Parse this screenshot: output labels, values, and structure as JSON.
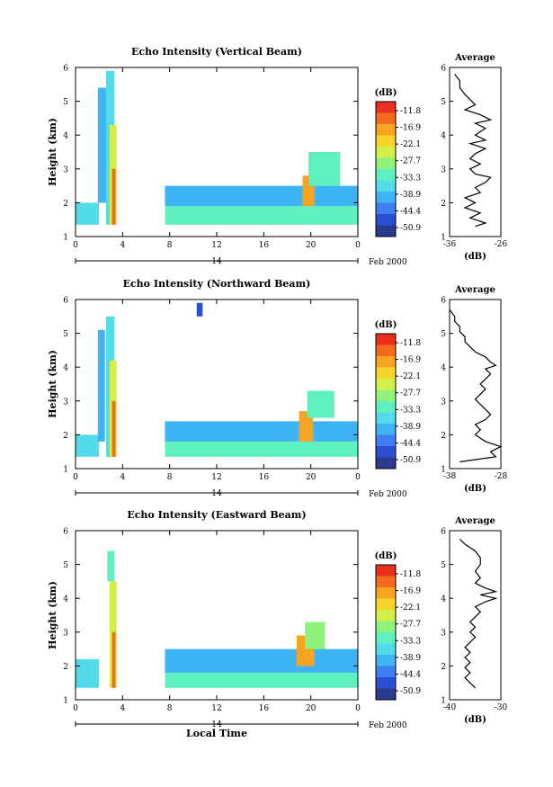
{
  "chart_data": [
    {
      "type": "heatmap",
      "title": "Echo Intensity (Vertical Beam)",
      "ylabel": "Height (km)",
      "xlabel": "",
      "ylim": [
        1,
        6
      ],
      "xlim": [
        0,
        24
      ],
      "yticks": [
        "1",
        "2",
        "3",
        "4",
        "5",
        "6"
      ],
      "xticks": [
        "0",
        "4",
        "8",
        "12",
        "16",
        "20",
        "0"
      ],
      "date_label": "14",
      "month_label": "Feb 2000",
      "colorbar": {
        "unit": "(dB)",
        "labels": [
          "-11.8",
          "-16.9",
          "-22.1",
          "-27.7",
          "-33.3",
          "-38.9",
          "-44.4",
          "-50.9"
        ],
        "colors": [
          "#2a3a8c",
          "#2b4fd4",
          "#3f7ef0",
          "#3fb4f5",
          "#52dcea",
          "#5ff0c0",
          "#8ff27a",
          "#d4f046",
          "#f6d52a",
          "#f9a420",
          "#f56b1d",
          "#e8301c"
        ]
      },
      "regions": [
        {
          "x0": 0.0,
          "x1": 2.0,
          "y0": 1.35,
          "y1": 2.0,
          "level": 4
        },
        {
          "x0": 1.9,
          "x1": 2.6,
          "y0": 2.0,
          "y1": 5.4,
          "level": 3
        },
        {
          "x0": 2.6,
          "x1": 3.3,
          "y0": 1.35,
          "y1": 5.9,
          "level": 4
        },
        {
          "x0": 2.9,
          "x1": 3.5,
          "y0": 1.35,
          "y1": 4.3,
          "level": 7
        },
        {
          "x0": 3.1,
          "x1": 3.4,
          "y0": 1.35,
          "y1": 3.0,
          "level": 10
        },
        {
          "x0": 7.6,
          "x1": 24.0,
          "y0": 1.35,
          "y1": 1.9,
          "level": 5
        },
        {
          "x0": 7.6,
          "x1": 24.0,
          "y0": 1.9,
          "y1": 2.5,
          "level": 3
        },
        {
          "x0": 19.3,
          "x1": 20.3,
          "y0": 1.9,
          "y1": 2.8,
          "level": 9
        },
        {
          "x0": 19.8,
          "x1": 22.5,
          "y0": 2.5,
          "y1": 3.5,
          "level": 5
        }
      ],
      "average": {
        "xlabel": "(dB)",
        "title": "Average",
        "xlim": [
          -36,
          -26
        ],
        "xticks": [
          "-36",
          "-26"
        ],
        "profile": [
          [
            1.3,
            -31
          ],
          [
            1.4,
            -29
          ],
          [
            1.55,
            -32
          ],
          [
            1.7,
            -30
          ],
          [
            1.85,
            -33
          ],
          [
            2.0,
            -31
          ],
          [
            2.15,
            -33
          ],
          [
            2.3,
            -30
          ],
          [
            2.45,
            -31
          ],
          [
            2.6,
            -29
          ],
          [
            2.75,
            -28
          ],
          [
            2.85,
            -31
          ],
          [
            3.0,
            -32
          ],
          [
            3.15,
            -30
          ],
          [
            3.3,
            -32
          ],
          [
            3.45,
            -31
          ],
          [
            3.6,
            -29
          ],
          [
            3.75,
            -32
          ],
          [
            3.85,
            -29
          ],
          [
            4.0,
            -31
          ],
          [
            4.1,
            -30
          ],
          [
            4.2,
            -29
          ],
          [
            4.35,
            -31
          ],
          [
            4.45,
            -28
          ],
          [
            4.6,
            -30
          ],
          [
            4.75,
            -33
          ],
          [
            4.9,
            -31
          ],
          [
            5.05,
            -32
          ],
          [
            5.2,
            -33
          ],
          [
            5.4,
            -34
          ],
          [
            5.6,
            -34
          ],
          [
            5.8,
            -35
          ]
        ]
      }
    },
    {
      "type": "heatmap",
      "title": "Echo Intensity (Northward Beam)",
      "ylabel": "Height (km)",
      "xlabel": "",
      "ylim": [
        1,
        6
      ],
      "xlim": [
        0,
        24
      ],
      "yticks": [
        "1",
        "2",
        "3",
        "4",
        "5",
        "6"
      ],
      "xticks": [
        "0",
        "4",
        "8",
        "12",
        "16",
        "20",
        "0"
      ],
      "date_label": "14",
      "month_label": "Feb 2000",
      "colorbar": {
        "unit": "(dB)",
        "labels": [
          "-11.8",
          "-16.9",
          "-22.1",
          "-27.7",
          "-33.3",
          "-38.9",
          "-44.4",
          "-50.9"
        ],
        "colors": [
          "#2a3a8c",
          "#2b4fd4",
          "#3f7ef0",
          "#3fb4f5",
          "#52dcea",
          "#5ff0c0",
          "#8ff27a",
          "#d4f046",
          "#f6d52a",
          "#f9a420",
          "#f56b1d",
          "#e8301c"
        ]
      },
      "regions": [
        {
          "x0": 0.0,
          "x1": 2.0,
          "y0": 1.35,
          "y1": 2.0,
          "level": 4
        },
        {
          "x0": 1.9,
          "x1": 2.5,
          "y0": 1.8,
          "y1": 5.1,
          "level": 3
        },
        {
          "x0": 2.6,
          "x1": 3.3,
          "y0": 1.35,
          "y1": 5.5,
          "level": 4
        },
        {
          "x0": 2.9,
          "x1": 3.5,
          "y0": 1.35,
          "y1": 4.2,
          "level": 7
        },
        {
          "x0": 3.1,
          "x1": 3.4,
          "y0": 1.35,
          "y1": 3.0,
          "level": 10
        },
        {
          "x0": 7.6,
          "x1": 24.0,
          "y0": 1.35,
          "y1": 1.8,
          "level": 5
        },
        {
          "x0": 7.6,
          "x1": 24.0,
          "y0": 1.8,
          "y1": 2.4,
          "level": 3
        },
        {
          "x0": 19.0,
          "x1": 20.2,
          "y0": 1.8,
          "y1": 2.7,
          "level": 9
        },
        {
          "x0": 19.7,
          "x1": 22.0,
          "y0": 2.5,
          "y1": 3.3,
          "level": 5
        },
        {
          "x0": 10.3,
          "x1": 10.8,
          "y0": 5.5,
          "y1": 5.9,
          "level": 1
        }
      ],
      "average": {
        "xlabel": "(dB)",
        "title": "Average",
        "xlim": [
          -38,
          -28
        ],
        "xticks": [
          "-38",
          "-28"
        ],
        "profile": [
          [
            1.2,
            -36
          ],
          [
            1.35,
            -29
          ],
          [
            1.5,
            -30
          ],
          [
            1.65,
            -28
          ],
          [
            1.8,
            -31
          ],
          [
            2.0,
            -33
          ],
          [
            2.15,
            -32
          ],
          [
            2.3,
            -33
          ],
          [
            2.45,
            -31
          ],
          [
            2.6,
            -30
          ],
          [
            2.75,
            -31
          ],
          [
            2.9,
            -32
          ],
          [
            3.05,
            -33
          ],
          [
            3.2,
            -32
          ],
          [
            3.35,
            -31
          ],
          [
            3.5,
            -32
          ],
          [
            3.65,
            -31
          ],
          [
            3.8,
            -30
          ],
          [
            3.95,
            -31
          ],
          [
            4.05,
            -29
          ],
          [
            4.15,
            -30
          ],
          [
            4.3,
            -31
          ],
          [
            4.45,
            -33
          ],
          [
            4.6,
            -34
          ],
          [
            4.75,
            -35
          ],
          [
            4.9,
            -35
          ],
          [
            5.05,
            -36
          ],
          [
            5.2,
            -36
          ],
          [
            5.35,
            -37
          ],
          [
            5.5,
            -37
          ],
          [
            5.7,
            -38
          ]
        ]
      }
    },
    {
      "type": "heatmap",
      "title": "Echo Intensity (Eastward Beam)",
      "ylabel": "Height (km)",
      "xlabel": "Local Time",
      "ylim": [
        1,
        6
      ],
      "xlim": [
        0,
        24
      ],
      "yticks": [
        "1",
        "2",
        "3",
        "4",
        "5",
        "6"
      ],
      "xticks": [
        "0",
        "4",
        "8",
        "12",
        "16",
        "20",
        "0"
      ],
      "date_label": "14",
      "month_label": "Feb 2000",
      "colorbar": {
        "unit": "(dB)",
        "labels": [
          "-11.8",
          "-16.9",
          "-22.1",
          "-27.7",
          "-33.3",
          "-38.9",
          "-44.4",
          "-50.9"
        ],
        "colors": [
          "#2a3a8c",
          "#2b4fd4",
          "#3f7ef0",
          "#3fb4f5",
          "#52dcea",
          "#5ff0c0",
          "#8ff27a",
          "#d4f046",
          "#f6d52a",
          "#f9a420",
          "#f56b1d",
          "#e8301c"
        ]
      },
      "regions": [
        {
          "x0": 0.0,
          "x1": 2.0,
          "y0": 1.35,
          "y1": 2.2,
          "level": 4
        },
        {
          "x0": 2.7,
          "x1": 3.3,
          "y0": 4.5,
          "y1": 5.4,
          "level": 5
        },
        {
          "x0": 2.9,
          "x1": 3.5,
          "y0": 1.35,
          "y1": 4.5,
          "level": 7
        },
        {
          "x0": 3.1,
          "x1": 3.4,
          "y0": 1.35,
          "y1": 3.0,
          "level": 10
        },
        {
          "x0": 7.6,
          "x1": 24.0,
          "y0": 1.35,
          "y1": 1.8,
          "level": 5
        },
        {
          "x0": 7.6,
          "x1": 24.0,
          "y0": 1.8,
          "y1": 2.5,
          "level": 3
        },
        {
          "x0": 18.8,
          "x1": 20.3,
          "y0": 2.0,
          "y1": 2.9,
          "level": 9
        },
        {
          "x0": 19.5,
          "x1": 21.2,
          "y0": 2.5,
          "y1": 3.3,
          "level": 6
        }
      ],
      "average": {
        "xlabel": "(dB)",
        "title": "Average",
        "xlim": [
          -40,
          -30
        ],
        "xticks": [
          "-40",
          "-30"
        ],
        "profile": [
          [
            1.35,
            -35
          ],
          [
            1.5,
            -36
          ],
          [
            1.65,
            -37
          ],
          [
            1.8,
            -36
          ],
          [
            1.95,
            -37
          ],
          [
            2.1,
            -36
          ],
          [
            2.25,
            -37
          ],
          [
            2.4,
            -36
          ],
          [
            2.55,
            -37
          ],
          [
            2.7,
            -36
          ],
          [
            2.85,
            -35
          ],
          [
            3.0,
            -36
          ],
          [
            3.15,
            -35
          ],
          [
            3.3,
            -36
          ],
          [
            3.45,
            -35
          ],
          [
            3.6,
            -34
          ],
          [
            3.75,
            -35
          ],
          [
            3.9,
            -33
          ],
          [
            4.0,
            -31
          ],
          [
            4.1,
            -34
          ],
          [
            4.2,
            -31
          ],
          [
            4.3,
            -33
          ],
          [
            4.45,
            -35
          ],
          [
            4.6,
            -34
          ],
          [
            4.8,
            -35
          ],
          [
            5.0,
            -34
          ],
          [
            5.2,
            -34
          ],
          [
            5.4,
            -35
          ],
          [
            5.6,
            -37
          ],
          [
            5.75,
            -38
          ]
        ]
      }
    }
  ]
}
